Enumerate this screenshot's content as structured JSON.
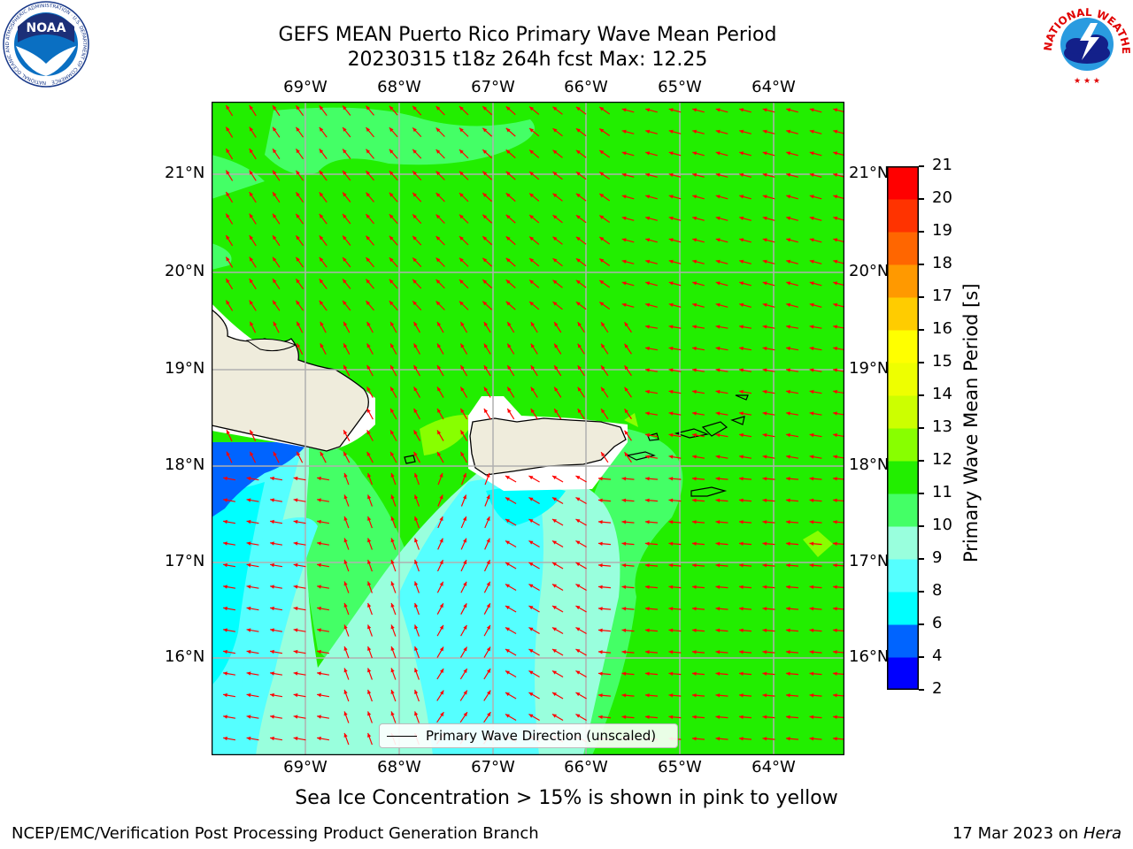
{
  "title_line1": "GEFS MEAN Puerto Rico Primary Wave Mean Period",
  "title_line2": "20230315 t18z 264h fcst   Max: 12.25",
  "lon_labels": [
    "69°W",
    "68°W",
    "67°W",
    "66°W",
    "65°W",
    "64°W"
  ],
  "lat_labels": [
    "21°N",
    "20°N",
    "19°N",
    "18°N",
    "17°N",
    "16°N"
  ],
  "colorbar": {
    "label": "Primary Wave Mean Period [s]",
    "ticks": [
      "2",
      "4",
      "6",
      "8",
      "9",
      "10",
      "11",
      "12",
      "13",
      "14",
      "15",
      "16",
      "17",
      "18",
      "19",
      "20",
      "21"
    ],
    "colors": [
      "#0000ff",
      "#0064ff",
      "#00ffff",
      "#55ffff",
      "#99ffdd",
      "#44ff66",
      "#22ee00",
      "#88ff00",
      "#ccff00",
      "#eeff00",
      "#ffff00",
      "#ffcc00",
      "#ff9900",
      "#ff6600",
      "#ff3300",
      "#ff0000"
    ]
  },
  "legend_text": "Primary Wave Direction (unscaled)",
  "subtitle": "Sea Ice Concentration > 15% is shown in pink to yellow",
  "footer_left": "NCEP/EMC/Verification Post Processing Product Generation Branch",
  "footer_date": "17 Mar 2023 on ",
  "footer_machine": "Hera",
  "logos": {
    "noaa": "NOAA",
    "noaa_ring": "NATIONAL OCEANIC AND ATMOSPHERIC ADMINISTRATION · U.S. DEPARTMENT OF COMMERCE",
    "nws_ring": "NATIONAL WEATHER SERVICE"
  },
  "colors": {
    "arrow": "#ff0000",
    "land": "#efecdc",
    "grid": "#b0b0b0"
  }
}
